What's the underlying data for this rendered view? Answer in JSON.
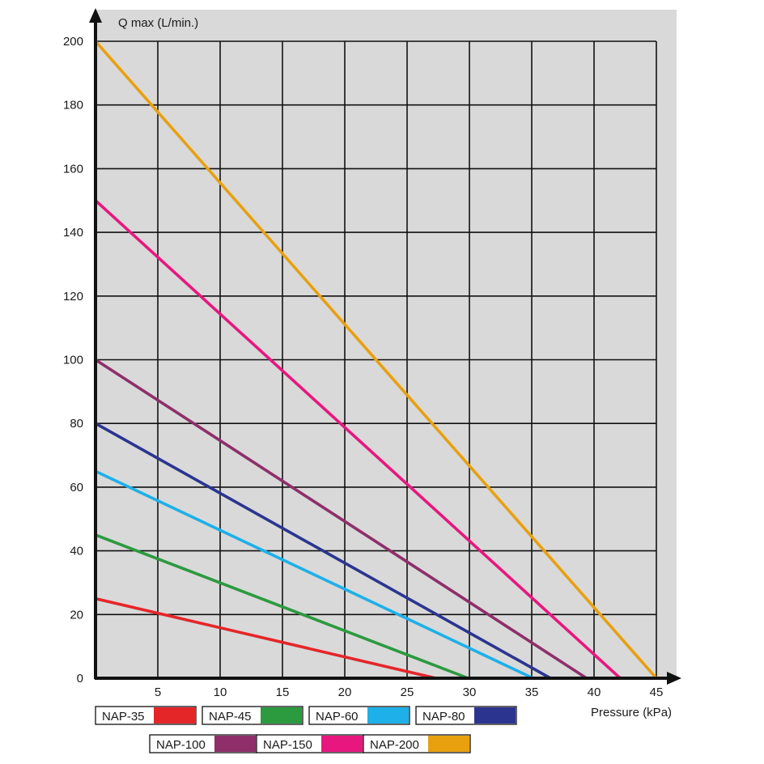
{
  "chart_data": {
    "type": "line",
    "title": "",
    "ylabel": "Q max (L/min.)",
    "xlabel": "Pressure (kPa)",
    "xlim": [
      0,
      45
    ],
    "ylim": [
      0,
      200
    ],
    "x_ticks": [
      "5",
      "10",
      "15",
      "20",
      "25",
      "30",
      "35",
      "40",
      "45"
    ],
    "y_ticks": [
      "0",
      "20",
      "40",
      "60",
      "80",
      "100",
      "120",
      "140",
      "160",
      "180",
      "200"
    ],
    "x_grid_step": 5,
    "y_grid_step": 20,
    "grid": true,
    "background": "#d9d9d9",
    "legend_position": "bottom",
    "series": [
      {
        "name": "NAP-35",
        "color": "#e52629",
        "points": [
          [
            0,
            25
          ],
          [
            27.3,
            0
          ]
        ]
      },
      {
        "name": "NAP-45",
        "color": "#2c9a3f",
        "points": [
          [
            0,
            45
          ],
          [
            29.9,
            0
          ]
        ]
      },
      {
        "name": "NAP-60",
        "color": "#1eb0e8",
        "points": [
          [
            0,
            65
          ],
          [
            35.1,
            0
          ]
        ]
      },
      {
        "name": "NAP-80",
        "color": "#2b3590",
        "points": [
          [
            0,
            80
          ],
          [
            36.5,
            0
          ]
        ]
      },
      {
        "name": "NAP-100",
        "color": "#8e2f6a",
        "points": [
          [
            0,
            100
          ],
          [
            39.4,
            0
          ]
        ]
      },
      {
        "name": "NAP-150",
        "color": "#e8177f",
        "points": [
          [
            0,
            150
          ],
          [
            42.1,
            0
          ]
        ]
      },
      {
        "name": "NAP-200",
        "color": "#e8a00f",
        "points": [
          [
            0,
            200
          ],
          [
            45,
            0
          ]
        ]
      }
    ]
  }
}
